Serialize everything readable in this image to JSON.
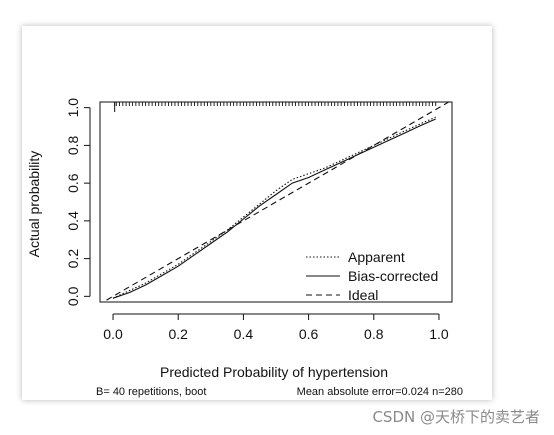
{
  "chart_data": {
    "type": "line",
    "xlabel": "Predicted Probability of hypertension",
    "ylabel": "Actual probability",
    "xlim": [
      -0.04,
      1.04
    ],
    "ylim": [
      -0.03,
      1.03
    ],
    "x_ticks": [
      "0.0",
      "0.2",
      "0.4",
      "0.6",
      "0.8",
      "1.0"
    ],
    "y_ticks": [
      "0.0",
      "0.2",
      "0.4",
      "0.6",
      "0.8",
      "1.0"
    ],
    "grid": false,
    "legend_position": "bottom-right",
    "series": [
      {
        "name": "Apparent",
        "style": "dotted",
        "x": [
          0.0,
          0.05,
          0.1,
          0.15,
          0.2,
          0.25,
          0.3,
          0.35,
          0.4,
          0.45,
          0.5,
          0.55,
          0.6,
          0.65,
          0.7,
          0.75,
          0.8,
          0.85,
          0.9,
          0.95,
          0.99
        ],
        "y": [
          -0.01,
          0.03,
          0.07,
          0.12,
          0.17,
          0.23,
          0.29,
          0.35,
          0.42,
          0.49,
          0.56,
          0.62,
          0.65,
          0.68,
          0.72,
          0.76,
          0.8,
          0.84,
          0.88,
          0.92,
          0.95
        ]
      },
      {
        "name": "Bias-corrected",
        "style": "solid",
        "x": [
          0.0,
          0.05,
          0.1,
          0.15,
          0.2,
          0.25,
          0.3,
          0.35,
          0.4,
          0.45,
          0.5,
          0.55,
          0.6,
          0.65,
          0.7,
          0.75,
          0.8,
          0.85,
          0.9,
          0.95,
          0.99
        ],
        "y": [
          -0.01,
          0.02,
          0.06,
          0.11,
          0.16,
          0.22,
          0.28,
          0.34,
          0.41,
          0.48,
          0.54,
          0.6,
          0.63,
          0.67,
          0.71,
          0.75,
          0.79,
          0.83,
          0.87,
          0.91,
          0.94
        ]
      },
      {
        "name": "Ideal",
        "style": "dashed",
        "x": [
          -0.02,
          1.04
        ],
        "y": [
          -0.02,
          1.04
        ]
      }
    ],
    "rug_marks": [
      0.01,
      0.02,
      0.03,
      0.04,
      0.05,
      0.06,
      0.07,
      0.08,
      0.09,
      0.1,
      0.11,
      0.12,
      0.13,
      0.14,
      0.15,
      0.16,
      0.17,
      0.18,
      0.19,
      0.2,
      0.21,
      0.22,
      0.23,
      0.24,
      0.25,
      0.26,
      0.27,
      0.28,
      0.29,
      0.3,
      0.31,
      0.32,
      0.33,
      0.34,
      0.35,
      0.36,
      0.37,
      0.38,
      0.39,
      0.4,
      0.41,
      0.42,
      0.43,
      0.44,
      0.45,
      0.46,
      0.47,
      0.48,
      0.49,
      0.5,
      0.51,
      0.52,
      0.53,
      0.54,
      0.55,
      0.56,
      0.57,
      0.58,
      0.59,
      0.6,
      0.61,
      0.62,
      0.63,
      0.64,
      0.65,
      0.66,
      0.67,
      0.68,
      0.69,
      0.7,
      0.71,
      0.72,
      0.73,
      0.74,
      0.75,
      0.76,
      0.77,
      0.78,
      0.79,
      0.8,
      0.81,
      0.82,
      0.83,
      0.84,
      0.85,
      0.86,
      0.87,
      0.88,
      0.89,
      0.9,
      0.91,
      0.92,
      0.93,
      0.94,
      0.95,
      0.96,
      0.97,
      0.98,
      0.99,
      0.005
    ],
    "footer_left": "B= 40 repetitions, boot",
    "footer_right": "Mean absolute error=0.024 n=280"
  },
  "watermark": "CSDN @天桥下的卖艺者"
}
